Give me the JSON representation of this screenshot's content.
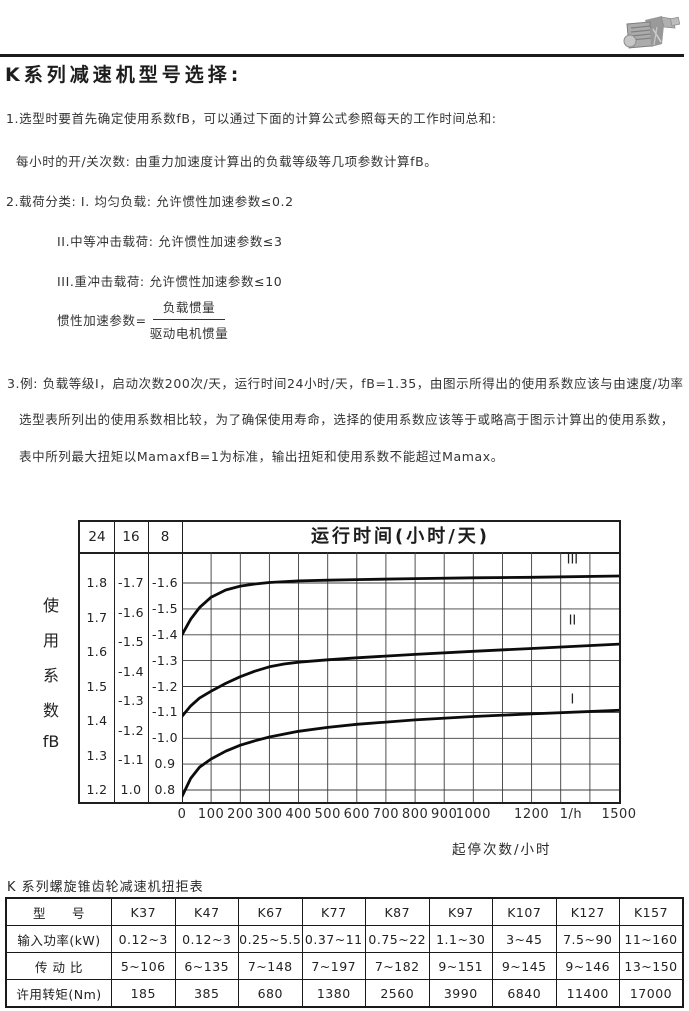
{
  "header": {
    "title": "K系列减速机型号选择:"
  },
  "paragraphs": {
    "p1": "1.选型时要首先确定使用系数fB，可以通过下面的计算公式参照每天的工作时间总和:",
    "p2": "每小时的开/关次数: 由重力加速度计算出的负载等级等几项参数计算fB。",
    "p3": "2.载荷分类: I. 均匀负载: 允许惯性加速参数≤0.2",
    "p4": "II.中等冲击载荷: 允许惯性加速参数≤3",
    "p5": "III.重冲击载荷: 允许惯性加速参数≤10",
    "formula_lhs": "惯性加速参数=",
    "formula_numerator": "负载惯量",
    "formula_denominator": "驱动电机惯量",
    "p6": "3.例: 负载等级I，启动次数200次/天，运行时间24小时/天，fB=1.35，由图示所得出的使用系数应该与由速度/功率",
    "p7": "选型表所列出的使用系数相比较，为了确保使用寿命，选择的使用系数应该等于或略高于图示计算出的使用系数，",
    "p8": "表中所列最大扭矩以MamaxfB=1为标准，输出扭矩和使用系数不能超过Mamax。"
  },
  "chart_data": {
    "type": "line",
    "title": "运行时间(小时/天)",
    "y_axis_label": "使用系数fB",
    "y_axis_label_chars": [
      "使",
      "用",
      "系",
      "数",
      "fB"
    ],
    "x_axis_label": "起停次数/小时",
    "x_unit": "1/h",
    "xlim": [
      0,
      1500
    ],
    "x_grid_step": 100,
    "grid": true,
    "x_tick_labels": [
      {
        "value": 0,
        "label": "0"
      },
      {
        "value": 100,
        "label": "100"
      },
      {
        "value": 200,
        "label": "200"
      },
      {
        "value": 300,
        "label": "300"
      },
      {
        "value": 400,
        "label": "400"
      },
      {
        "value": 500,
        "label": "500"
      },
      {
        "value": 600,
        "label": "600"
      },
      {
        "value": 700,
        "label": "700"
      },
      {
        "value": 800,
        "label": "800"
      },
      {
        "value": 900,
        "label": "900"
      },
      {
        "value": 1000,
        "label": "1000"
      },
      {
        "value": 1200,
        "label": "1200"
      },
      {
        "value": 1335,
        "label": "1/h"
      },
      {
        "value": 1500,
        "label": "1500"
      }
    ],
    "y_scale_columns": [
      {
        "header": "24",
        "ticks": [
          "1.8",
          "1.7",
          "1.6",
          "1.5",
          "1.4",
          "1.3",
          "1.2"
        ]
      },
      {
        "header": "16",
        "ticks": [
          "-1.7",
          "-1.6",
          "-1.5",
          "-1.4",
          "-1.3",
          "-1.2",
          "-1.1",
          "1.0"
        ]
      },
      {
        "header": "8",
        "ticks": [
          "-1.6",
          "-1.5",
          "-1.4",
          "-1.3",
          "-1.2",
          "-1.1",
          "-1.0",
          "0.9",
          "0.8"
        ]
      }
    ],
    "plot_y_scale": {
      "top": 1.6,
      "bottom": 0.8
    },
    "series": [
      {
        "name": "III",
        "label_at": [
          1340,
          1.675
        ],
        "points": [
          [
            0,
            1.4
          ],
          [
            30,
            1.46
          ],
          [
            60,
            1.505
          ],
          [
            100,
            1.545
          ],
          [
            150,
            1.573
          ],
          [
            200,
            1.588
          ],
          [
            250,
            1.596
          ],
          [
            300,
            1.602
          ],
          [
            400,
            1.608
          ],
          [
            500,
            1.611
          ],
          [
            600,
            1.613
          ],
          [
            800,
            1.617
          ],
          [
            1000,
            1.62
          ],
          [
            1200,
            1.622
          ],
          [
            1500,
            1.627
          ]
        ]
      },
      {
        "name": "II",
        "label_at": [
          1340,
          1.44
        ],
        "points": [
          [
            0,
            1.085
          ],
          [
            30,
            1.125
          ],
          [
            60,
            1.155
          ],
          [
            100,
            1.182
          ],
          [
            150,
            1.212
          ],
          [
            200,
            1.238
          ],
          [
            250,
            1.259
          ],
          [
            300,
            1.276
          ],
          [
            350,
            1.287
          ],
          [
            400,
            1.294
          ],
          [
            500,
            1.303
          ],
          [
            600,
            1.311
          ],
          [
            800,
            1.324
          ],
          [
            1000,
            1.336
          ],
          [
            1200,
            1.347
          ],
          [
            1500,
            1.364
          ]
        ]
      },
      {
        "name": "I",
        "label_at": [
          1340,
          1.135
        ],
        "points": [
          [
            0,
            0.775
          ],
          [
            30,
            0.845
          ],
          [
            60,
            0.888
          ],
          [
            100,
            0.92
          ],
          [
            150,
            0.95
          ],
          [
            200,
            0.973
          ],
          [
            250,
            0.99
          ],
          [
            300,
            1.005
          ],
          [
            400,
            1.027
          ],
          [
            500,
            1.042
          ],
          [
            600,
            1.054
          ],
          [
            800,
            1.071
          ],
          [
            1000,
            1.084
          ],
          [
            1200,
            1.094
          ],
          [
            1500,
            1.108
          ]
        ]
      }
    ]
  },
  "table": {
    "title": "K 系列螺旋锥齿轮减速机扭拒表",
    "header_row": [
      "型　　号",
      "K37",
      "K47",
      "K67",
      "K77",
      "K87",
      "K97",
      "K107",
      "K127",
      "K157"
    ],
    "rows": [
      [
        "输入功率(kW)",
        "0.12~3",
        "0.12~3",
        "0.25~5.5",
        "0.37~11",
        "0.75~22",
        "1.1~30",
        "3~45",
        "7.5~90",
        "11~160"
      ],
      [
        "传 动 比",
        "5~106",
        "6~135",
        "7~148",
        "7~197",
        "7~182",
        "9~151",
        "9~145",
        "9~146",
        "13~150"
      ],
      [
        "许用转矩(Nm)",
        "185",
        "385",
        "680",
        "1380",
        "2560",
        "3990",
        "6840",
        "11400",
        "17000"
      ]
    ]
  }
}
